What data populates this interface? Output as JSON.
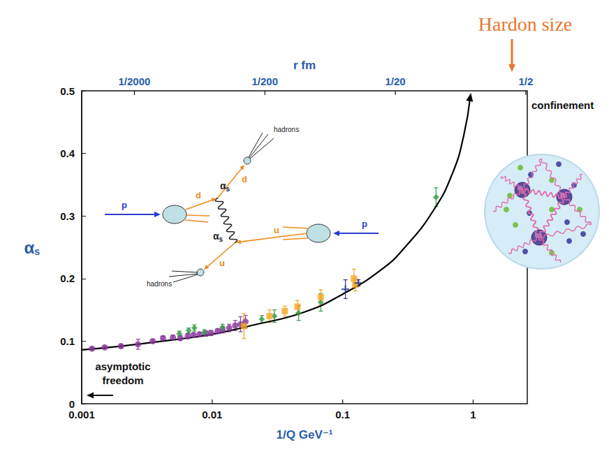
{
  "chart_data": {
    "type": "scatter",
    "log": "x",
    "grid": false,
    "x_label": "1/Q GeV⁻¹",
    "y_label": "αs",
    "x2_label": "r fm",
    "xlim": [
      0.001,
      2.6
    ],
    "xticks": [
      0.001,
      0.01,
      0.1,
      1
    ],
    "ylim": [
      0,
      0.5
    ],
    "yticks": [
      0,
      0.1,
      0.2,
      0.3,
      0.4,
      0.5
    ],
    "x2lim": [
      0.0001973,
      0.513
    ],
    "x2ticks": [
      {
        "value": 0.0005,
        "label": "1/2000"
      },
      {
        "value": 0.005,
        "label": "1/200"
      },
      {
        "value": 0.05,
        "label": "1/20"
      },
      {
        "value": 0.5,
        "label": "1/2"
      }
    ],
    "series": [
      {
        "type": "scatter",
        "marker": "circle",
        "color": "#8a3a9c",
        "x": [
          0.0012,
          0.0015,
          0.002,
          0.0027,
          0.0035,
          0.0042,
          0.005,
          0.0057,
          0.0065,
          0.0072,
          0.008,
          0.009,
          0.0098,
          0.011,
          0.012,
          0.0135,
          0.015,
          0.0165,
          0.018
        ],
        "values": [
          0.088,
          0.09,
          0.092,
          0.095,
          0.1,
          0.105,
          0.106,
          0.105,
          0.108,
          0.11,
          0.111,
          0.112,
          0.113,
          0.116,
          0.118,
          0.121,
          0.125,
          0.127,
          0.131
        ],
        "errors": [
          0.002,
          0.002,
          0.003,
          0.008,
          0.003,
          0.003,
          0.003,
          0.004,
          0.004,
          0.003,
          0.003,
          0.004,
          0.004,
          0.004,
          0.005,
          0.006,
          0.008,
          0.012,
          0.01
        ]
      },
      {
        "type": "scatter",
        "marker": "diamond",
        "color": "#3a9c4a",
        "x": [
          0.0056,
          0.0066,
          0.0073,
          0.0087,
          0.012,
          0.024,
          0.03,
          0.046,
          0.068,
          0.52
        ],
        "values": [
          0.112,
          0.117,
          0.121,
          0.114,
          0.122,
          0.135,
          0.14,
          0.145,
          0.162,
          0.33
        ],
        "errors": [
          0.004,
          0.004,
          0.005,
          0.004,
          0.005,
          0.006,
          0.01,
          0.012,
          0.014,
          0.015
        ]
      },
      {
        "type": "scatter",
        "marker": "square",
        "color": "#f5a623",
        "x": [
          0.0175,
          0.0275,
          0.036,
          0.045,
          0.068,
          0.122,
          0.125
        ],
        "values": [
          0.124,
          0.14,
          0.148,
          0.155,
          0.17,
          0.2,
          0.19
        ],
        "errors": [
          0.02,
          0.01,
          0.008,
          0.01,
          0.012,
          0.015,
          0.01
        ]
      },
      {
        "type": "scatter",
        "marker": "cross",
        "color": "#2a3b90",
        "x": [
          0.105,
          0.132
        ],
        "values": [
          0.183,
          0.193
        ],
        "errors": [
          0.015,
          0.005
        ]
      },
      {
        "type": "line",
        "marker": "arrow",
        "line_style": "solid",
        "color": "#000000",
        "x": [
          0.001,
          0.002,
          0.005,
          0.01,
          0.02,
          0.05,
          0.1,
          0.2,
          0.3,
          0.5,
          0.7,
          0.85,
          0.95
        ],
        "values": [
          0.086,
          0.092,
          0.102,
          0.111,
          0.125,
          0.146,
          0.175,
          0.215,
          0.25,
          0.31,
          0.37,
          0.43,
          0.49
        ]
      }
    ],
    "annotations": {
      "confinement": {
        "text": "confinement"
      },
      "asymptotic_freedom": {
        "text": "asymptotic freedom"
      },
      "hadron_size": {
        "text": "Hardon size",
        "color": "#e8772e"
      }
    },
    "diagram": {
      "beam": "p",
      "quark_upper": "d",
      "quark_lower": "u",
      "coupling": "αs",
      "jets": "hadrons"
    }
  }
}
